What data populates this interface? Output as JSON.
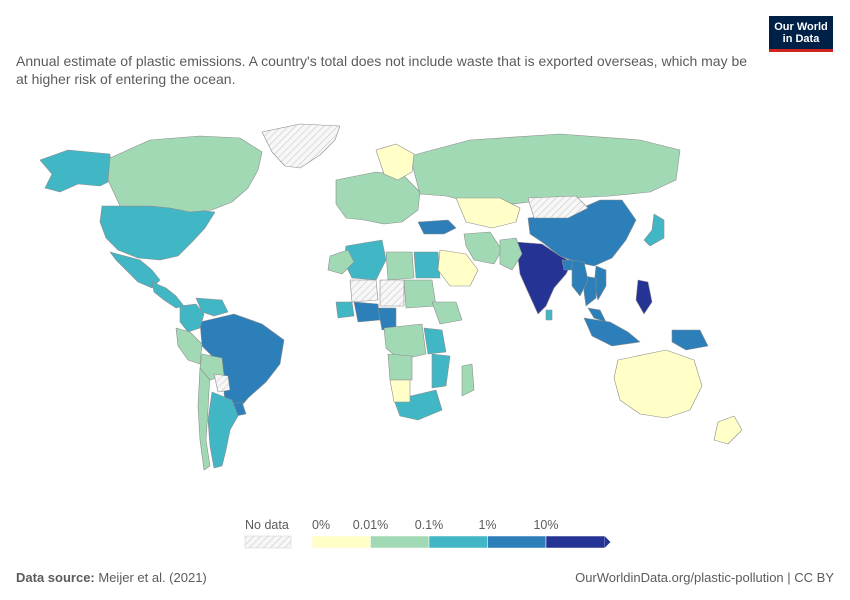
{
  "subtitle": "Annual estimate of plastic emissions. A country's total does not include waste that is exported overseas, which may be at higher risk of entering the ocean.",
  "logo": {
    "line1": "Our World",
    "line2": "in Data"
  },
  "colors": {
    "no_data": "#f2f2f2",
    "bin0": "#ffffc7",
    "bin1": "#a2d9b5",
    "bin2": "#41b6c4",
    "bin3": "#2c7fb8",
    "bin4": "#253494",
    "logo_bg": "#002147",
    "logo_accent": "#ce261e"
  },
  "legend": {
    "no_data_label": "No data",
    "tick_labels": [
      "0%",
      "0.01%",
      "0.1%",
      "1%",
      "10%"
    ],
    "bins": [
      "bin0",
      "bin1",
      "bin2",
      "bin3",
      "bin4"
    ]
  },
  "map_data": {
    "type": "choropleth",
    "metric": "Share of global plastic emissions to the ocean",
    "regions": [
      {
        "name": "Philippines",
        "bin": "bin4"
      },
      {
        "name": "India",
        "bin": "bin4"
      },
      {
        "name": "Malaysia",
        "bin": "bin3"
      },
      {
        "name": "China",
        "bin": "bin3"
      },
      {
        "name": "Indonesia",
        "bin": "bin3"
      },
      {
        "name": "Brazil",
        "bin": "bin3"
      },
      {
        "name": "Vietnam",
        "bin": "bin3"
      },
      {
        "name": "Bangladesh",
        "bin": "bin3"
      },
      {
        "name": "Thailand",
        "bin": "bin3"
      },
      {
        "name": "Turkey",
        "bin": "bin3"
      },
      {
        "name": "Nigeria",
        "bin": "bin3"
      },
      {
        "name": "Cameroon",
        "bin": "bin3"
      },
      {
        "name": "Myanmar",
        "bin": "bin3"
      },
      {
        "name": "Uruguay",
        "bin": "bin3"
      },
      {
        "name": "Papua New Guinea",
        "bin": "bin3"
      },
      {
        "name": "United States",
        "bin": "bin2"
      },
      {
        "name": "Mexico",
        "bin": "bin2"
      },
      {
        "name": "Alaska",
        "bin": "bin2"
      },
      {
        "name": "Algeria",
        "bin": "bin2"
      },
      {
        "name": "Egypt",
        "bin": "bin2"
      },
      {
        "name": "Colombia",
        "bin": "bin2"
      },
      {
        "name": "Venezuela",
        "bin": "bin2"
      },
      {
        "name": "Argentina",
        "bin": "bin2"
      },
      {
        "name": "South Africa",
        "bin": "bin2"
      },
      {
        "name": "Mozambique",
        "bin": "bin2"
      },
      {
        "name": "Tanzania",
        "bin": "bin2"
      },
      {
        "name": "Japan",
        "bin": "bin2"
      },
      {
        "name": "Ghana",
        "bin": "bin2"
      },
      {
        "name": "Sri Lanka",
        "bin": "bin2"
      },
      {
        "name": "Central America",
        "bin": "bin2"
      },
      {
        "name": "Canada",
        "bin": "bin1"
      },
      {
        "name": "Russia",
        "bin": "bin1"
      },
      {
        "name": "Europe",
        "bin": "bin1"
      },
      {
        "name": "Peru",
        "bin": "bin1"
      },
      {
        "name": "Chile",
        "bin": "bin1"
      },
      {
        "name": "Bolivia",
        "bin": "bin1"
      },
      {
        "name": "Libya",
        "bin": "bin1"
      },
      {
        "name": "Morocco",
        "bin": "bin1"
      },
      {
        "name": "Sudan",
        "bin": "bin1"
      },
      {
        "name": "DR Congo",
        "bin": "bin1"
      },
      {
        "name": "Angola",
        "bin": "bin1"
      },
      {
        "name": "Ethiopia",
        "bin": "bin1"
      },
      {
        "name": "Madagascar",
        "bin": "bin1"
      },
      {
        "name": "Iran",
        "bin": "bin1"
      },
      {
        "name": "Pakistan",
        "bin": "bin1"
      },
      {
        "name": "Australia",
        "bin": "bin0"
      },
      {
        "name": "New Zealand",
        "bin": "bin0"
      },
      {
        "name": "Kazakhstan",
        "bin": "bin0"
      },
      {
        "name": "Saudi Arabia",
        "bin": "bin0"
      },
      {
        "name": "Namibia",
        "bin": "bin0"
      },
      {
        "name": "Scandinavia",
        "bin": "bin0"
      },
      {
        "name": "Greenland",
        "bin": "no_data"
      },
      {
        "name": "Mongolia",
        "bin": "no_data"
      },
      {
        "name": "Mali",
        "bin": "no_data"
      },
      {
        "name": "Chad",
        "bin": "no_data"
      },
      {
        "name": "Paraguay",
        "bin": "no_data"
      }
    ]
  },
  "footer": {
    "source_label": "Data source:",
    "source_text": "Meijer et al. (2021)",
    "url_text": "OurWorldinData.org/plastic-pollution | CC BY"
  }
}
